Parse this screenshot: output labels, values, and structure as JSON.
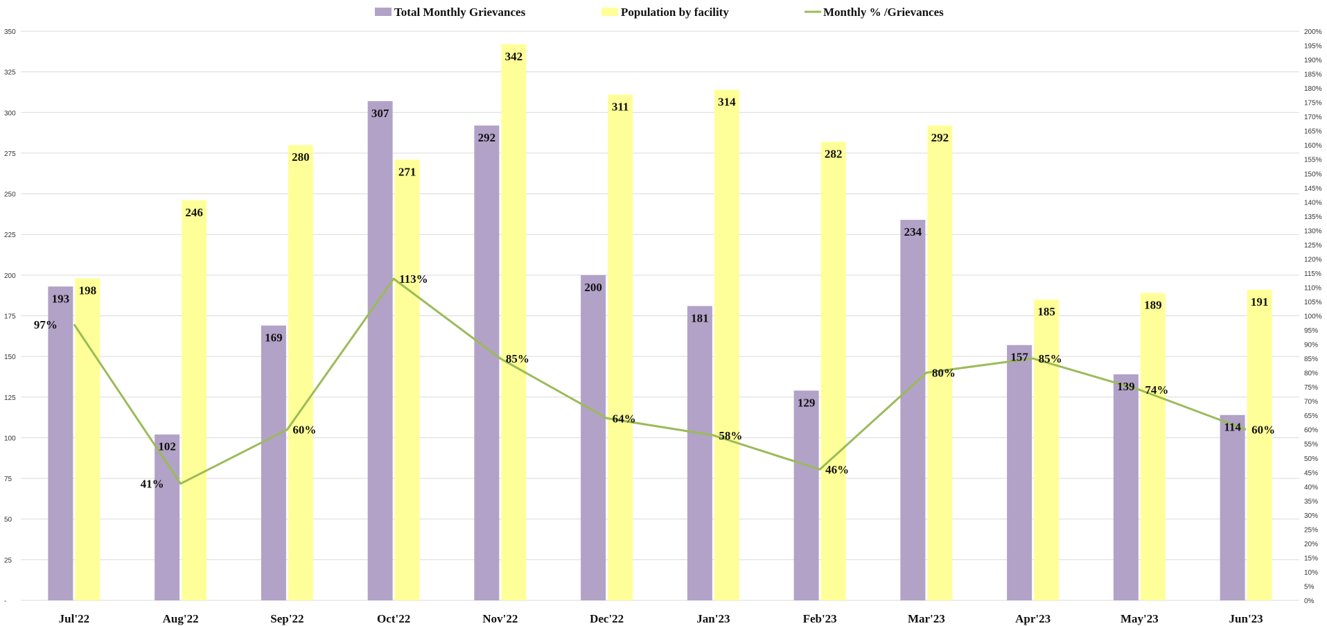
{
  "chart_data": {
    "type": "bar",
    "categories": [
      "Jul'22",
      "Aug'22",
      "Sep'22",
      "Oct'22",
      "Nov'22",
      "Dec'22",
      "Jan'23",
      "Feb'23",
      "Mar'23",
      "Apr'23",
      "May'23",
      "Jun'23"
    ],
    "series": [
      {
        "name": "Total Monthly Grievances",
        "type": "bar",
        "axis": "left",
        "color": "#b2a2c7",
        "values": [
          193,
          102,
          169,
          307,
          292,
          200,
          181,
          129,
          234,
          157,
          139,
          114
        ],
        "labels": [
          "193",
          "102",
          "169",
          "307",
          "292",
          "200",
          "181",
          "129",
          "234",
          "157",
          "139",
          "114"
        ]
      },
      {
        "name": "Population by facility",
        "type": "bar",
        "axis": "left",
        "color": "#ffff99",
        "values": [
          198,
          246,
          280,
          271,
          342,
          311,
          314,
          282,
          292,
          185,
          189,
          191
        ],
        "labels": [
          "198",
          "246",
          "280",
          "271",
          "342",
          "311",
          "314",
          "282",
          "292",
          "185",
          "189",
          "191"
        ]
      },
      {
        "name": "Monthly % /Grievances",
        "type": "line",
        "axis": "right",
        "color": "#9bbb59",
        "values": [
          97,
          41,
          60,
          113,
          85,
          64,
          58,
          46,
          80,
          85,
          74,
          60
        ],
        "labels": [
          "97%",
          "41%",
          "60%",
          "113%",
          "85%",
          "64%",
          "58%",
          "46%",
          "80%",
          "85%",
          "74%",
          "60%"
        ]
      }
    ],
    "left_axis": {
      "ylim": [
        0,
        350
      ],
      "ticks": [
        "-",
        "25",
        "50",
        "75",
        "100",
        "125",
        "150",
        "175",
        "200",
        "225",
        "250",
        "275",
        "300",
        "325",
        "350"
      ]
    },
    "right_axis": {
      "ylim": [
        0,
        200
      ],
      "ticks": [
        "0%",
        "5%",
        "10%",
        "15%",
        "20%",
        "25%",
        "30%",
        "35%",
        "40%",
        "45%",
        "50%",
        "55%",
        "60%",
        "65%",
        "70%",
        "75%",
        "80%",
        "85%",
        "90%",
        "95%",
        "100%",
        "105%",
        "110%",
        "115%",
        "120%",
        "125%",
        "130%",
        "135%",
        "140%",
        "145%",
        "150%",
        "155%",
        "160%",
        "165%",
        "170%",
        "175%",
        "180%",
        "185%",
        "190%",
        "195%",
        "200%"
      ]
    },
    "grid": true,
    "legend_position": "top-center"
  }
}
